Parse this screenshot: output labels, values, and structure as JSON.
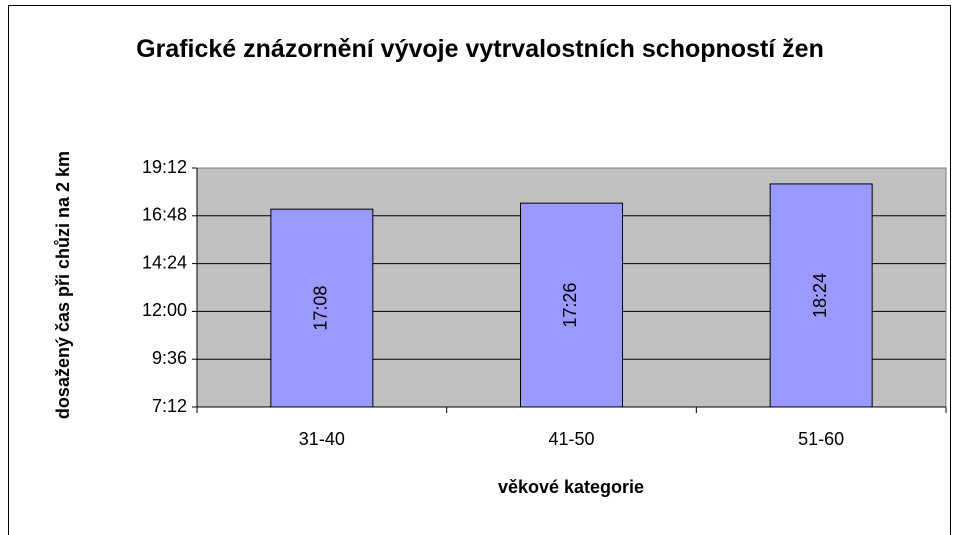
{
  "chart_data": {
    "type": "bar",
    "title": "Grafické znázornění vývoje vytrvalostních schopností žen",
    "ylabel": "dosažený čas při chůzi na 2 km",
    "xlabel": "věkové kategorie",
    "categories": [
      "31-40",
      "41-50",
      "51-60"
    ],
    "values": [
      1028,
      1046,
      1104
    ],
    "value_labels": [
      "17:08",
      "17:26",
      "18:24"
    ],
    "color": "#9999ff",
    "ylim": [
      432,
      1152
    ],
    "yticks": [
      {
        "value": 432,
        "label": "7:12"
      },
      {
        "value": 576,
        "label": "9:36"
      },
      {
        "value": 720,
        "label": "12:00"
      },
      {
        "value": 864,
        "label": "14:24"
      },
      {
        "value": 1008,
        "label": "16:48"
      },
      {
        "value": 1152,
        "label": "19:12"
      }
    ],
    "grid": true
  }
}
